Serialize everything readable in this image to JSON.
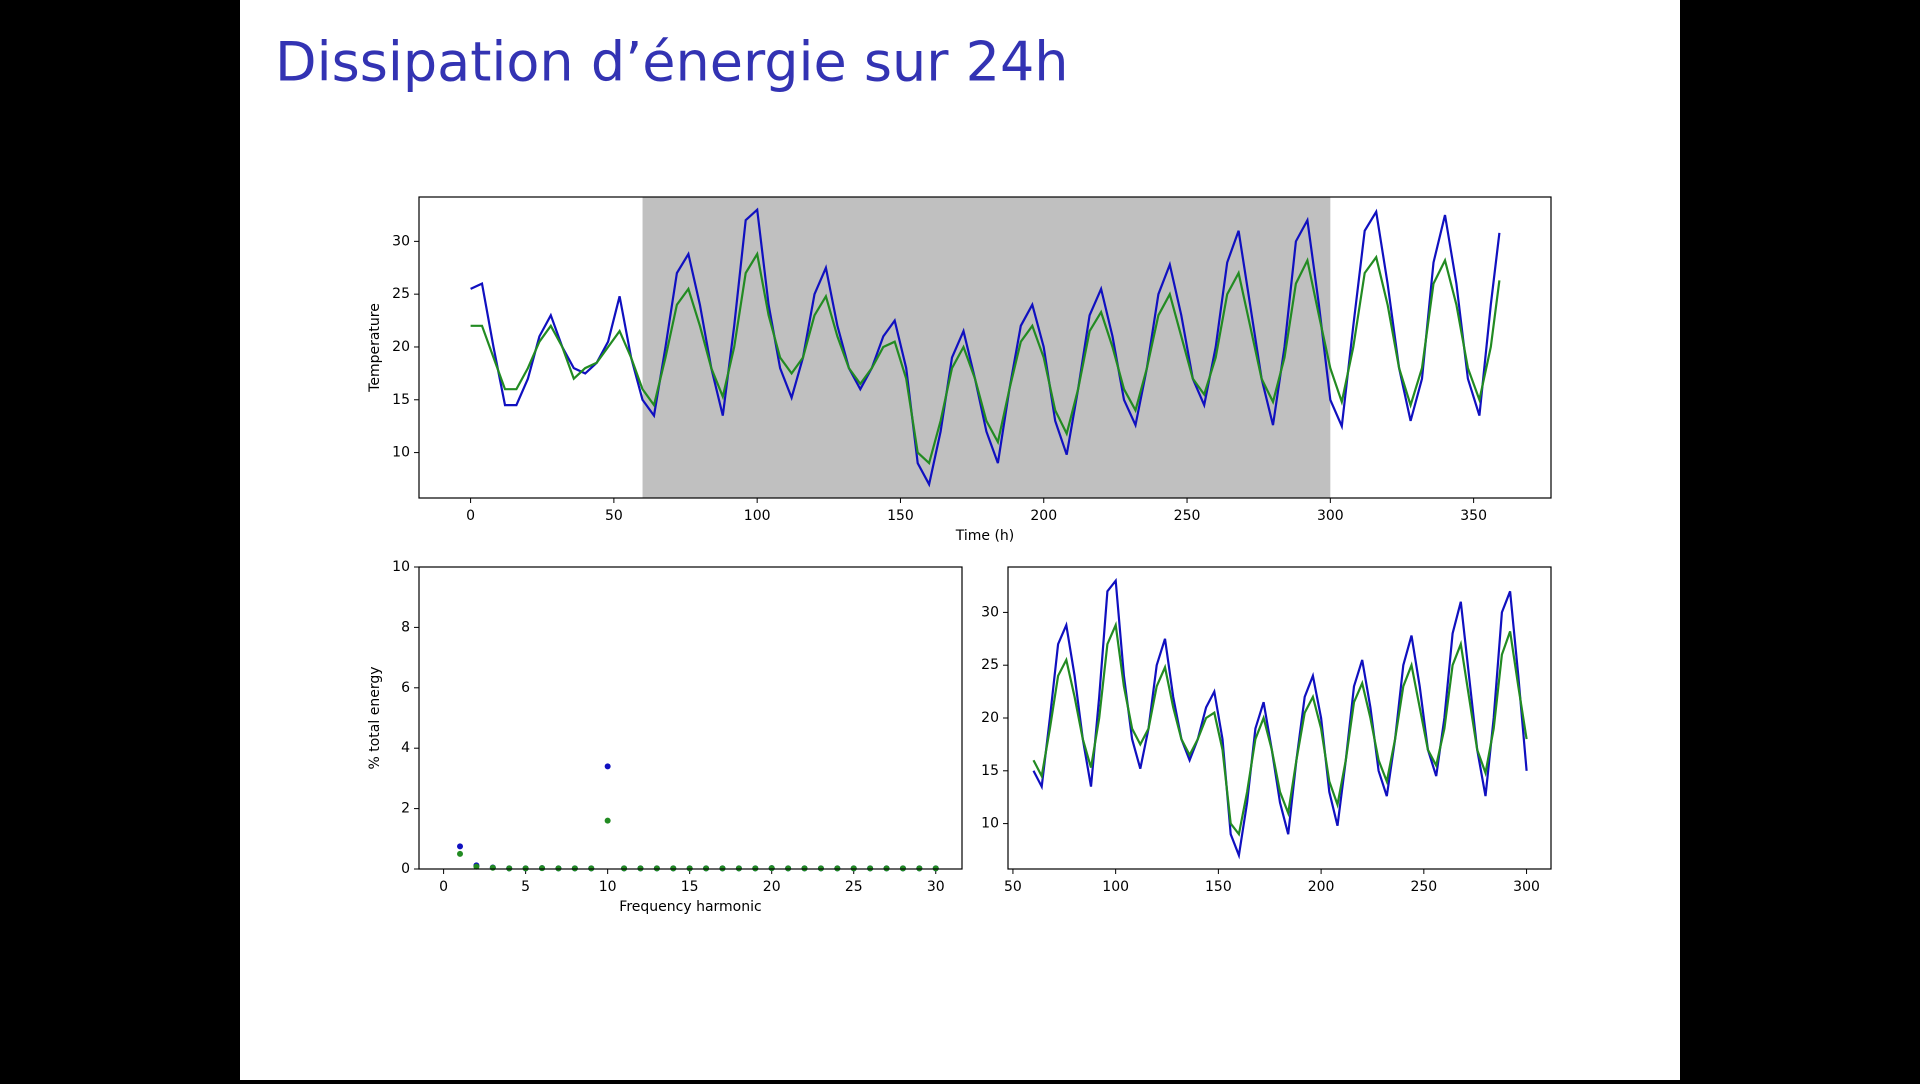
{
  "slide": {
    "title": "Dissipation d’énergie sur 24h"
  },
  "chart_data": [
    {
      "type": "line",
      "xlabel": "Time (h)",
      "ylabel": "Temperature",
      "x": [
        0,
        4,
        8,
        12,
        16,
        20,
        24,
        28,
        32,
        36,
        40,
        44,
        48,
        52,
        56,
        60,
        64,
        68,
        72,
        76,
        80,
        84,
        88,
        92,
        96,
        100,
        104,
        108,
        112,
        116,
        120,
        124,
        128,
        132,
        136,
        140,
        144,
        148,
        152,
        156,
        160,
        164,
        168,
        172,
        176,
        180,
        184,
        188,
        192,
        196,
        200,
        204,
        208,
        212,
        216,
        220,
        224,
        228,
        232,
        236,
        240,
        244,
        248,
        252,
        256,
        260,
        264,
        268,
        272,
        276,
        280,
        284,
        288,
        292,
        296,
        300,
        304,
        308,
        312,
        316,
        320,
        324,
        328,
        332,
        336,
        340,
        344,
        348,
        352,
        356,
        359
      ],
      "series": [
        {
          "color": "#1010c0",
          "values": [
            25.5,
            26,
            20,
            14.5,
            14.5,
            17,
            21,
            23,
            20,
            18,
            17.5,
            18.5,
            20.5,
            24.8,
            19,
            15,
            13.5,
            20,
            27,
            28.8,
            24,
            18,
            13.5,
            22,
            32,
            33,
            24,
            18,
            15.2,
            19,
            25,
            27.5,
            22,
            18,
            16,
            18,
            21,
            22.5,
            18,
            9,
            7,
            12,
            19,
            21.5,
            17,
            12,
            9,
            16,
            22,
            24,
            20,
            13,
            9.8,
            16,
            23,
            25.5,
            21,
            15,
            12.6,
            18,
            25,
            27.8,
            23,
            17,
            14.5,
            20,
            28,
            31,
            24,
            17,
            12.6,
            20,
            30,
            32,
            24,
            15,
            12.5,
            22,
            31,
            32.8,
            26,
            18,
            13,
            17,
            28,
            32.5,
            26,
            17,
            13.5,
            24,
            30.8
          ]
        },
        {
          "color": "#228b22",
          "values": [
            22,
            22,
            19,
            16,
            16,
            18,
            20.5,
            22,
            20,
            17,
            18,
            18.5,
            20,
            21.5,
            19,
            16,
            14.5,
            19,
            24,
            25.5,
            22,
            18,
            15.3,
            20,
            27,
            28.8,
            23,
            19,
            17.5,
            19,
            23,
            24.8,
            21,
            18,
            16.5,
            18,
            20,
            20.5,
            17,
            10,
            9,
            13,
            18,
            20,
            17,
            13,
            11,
            16,
            20.5,
            22,
            19,
            14,
            11.8,
            16,
            21.5,
            23.3,
            20,
            16,
            14,
            18,
            23,
            25,
            21,
            17,
            15.5,
            19,
            25,
            27,
            22,
            17,
            14.8,
            19,
            26,
            28.2,
            23,
            18,
            14.8,
            20,
            27,
            28.5,
            24,
            18,
            14.5,
            18,
            26,
            28.2,
            24,
            18,
            15,
            20,
            26.3
          ]
        }
      ],
      "span": [
        60,
        300
      ],
      "span_color": "#c0c0c0",
      "xlim": [
        -18,
        377
      ],
      "ylim": [
        5.7,
        34.2
      ],
      "xticks": [
        0,
        50,
        100,
        150,
        200,
        250,
        300,
        350
      ],
      "yticks": [
        10,
        15,
        20,
        25,
        30
      ]
    },
    {
      "type": "scatter",
      "xlabel": "Frequency harmonic",
      "ylabel": "% total energy",
      "x": [
        1,
        2,
        3,
        4,
        5,
        6,
        7,
        8,
        9,
        10,
        11,
        12,
        13,
        14,
        15,
        16,
        17,
        18,
        19,
        20,
        21,
        22,
        23,
        24,
        25,
        26,
        27,
        28,
        29,
        30
      ],
      "series": [
        {
          "color": "#1010c0",
          "values": [
            0.75,
            0.12,
            0.05,
            0.02,
            0.02,
            0.03,
            0.02,
            0.02,
            0.02,
            3.4,
            0.02,
            0.02,
            0.02,
            0.02,
            0.02,
            0.02,
            0.02,
            0.02,
            0.02,
            0.03,
            0.02,
            0.02,
            0.02,
            0.02,
            0.02,
            0.02,
            0.02,
            0.02,
            0.02,
            0.02
          ]
        },
        {
          "color": "#228b22",
          "values": [
            0.5,
            0.08,
            0.04,
            0.02,
            0.02,
            0.03,
            0.02,
            0.02,
            0.02,
            1.6,
            0.02,
            0.02,
            0.02,
            0.02,
            0.02,
            0.02,
            0.02,
            0.02,
            0.02,
            0.03,
            0.02,
            0.02,
            0.02,
            0.02,
            0.02,
            0.02,
            0.02,
            0.02,
            0.02,
            0.02
          ]
        }
      ],
      "xlim": [
        -1.5,
        31.6
      ],
      "ylim": [
        0,
        10
      ],
      "xticks": [
        0,
        5,
        10,
        15,
        20,
        25,
        30
      ],
      "yticks": [
        0,
        2,
        4,
        6,
        8,
        10
      ]
    },
    {
      "type": "line",
      "x": [
        60,
        64,
        68,
        72,
        76,
        80,
        84,
        88,
        92,
        96,
        100,
        104,
        108,
        112,
        116,
        120,
        124,
        128,
        132,
        136,
        140,
        144,
        148,
        152,
        156,
        160,
        164,
        168,
        172,
        176,
        180,
        184,
        188,
        192,
        196,
        200,
        204,
        208,
        212,
        216,
        220,
        224,
        228,
        232,
        236,
        240,
        244,
        248,
        252,
        256,
        260,
        264,
        268,
        272,
        276,
        280,
        284,
        288,
        292,
        296,
        300
      ],
      "series": [
        {
          "color": "#1010c0",
          "values": [
            15,
            13.5,
            20,
            27,
            28.8,
            24,
            18,
            13.5,
            22,
            32,
            33,
            24,
            18,
            15.2,
            19,
            25,
            27.5,
            22,
            18,
            16,
            18,
            21,
            22.5,
            18,
            9,
            7,
            12,
            19,
            21.5,
            17,
            12,
            9,
            16,
            22,
            24,
            20,
            13,
            9.8,
            16,
            23,
            25.5,
            21,
            15,
            12.6,
            18,
            25,
            27.8,
            23,
            17,
            14.5,
            20,
            28,
            31,
            24,
            17,
            12.6,
            20,
            30,
            32,
            24,
            15
          ]
        },
        {
          "color": "#228b22",
          "values": [
            16,
            14.5,
            19,
            24,
            25.5,
            22,
            18,
            15.3,
            20,
            27,
            28.8,
            23,
            19,
            17.5,
            19,
            23,
            24.8,
            21,
            18,
            16.5,
            18,
            20,
            20.5,
            17,
            10,
            9,
            13,
            18,
            20,
            17,
            13,
            11,
            16,
            20.5,
            22,
            19,
            14,
            11.8,
            16,
            21.5,
            23.3,
            20,
            16,
            14,
            18,
            23,
            25,
            21,
            17,
            15.5,
            19,
            25,
            27,
            22,
            17,
            14.8,
            19,
            26,
            28.2,
            23,
            18
          ]
        }
      ],
      "xlim": [
        47.6,
        311.9
      ],
      "ylim": [
        5.7,
        34.3
      ],
      "xticks": [
        50,
        100,
        150,
        200,
        250,
        300
      ],
      "yticks": [
        10,
        15,
        20,
        25,
        30
      ]
    }
  ]
}
